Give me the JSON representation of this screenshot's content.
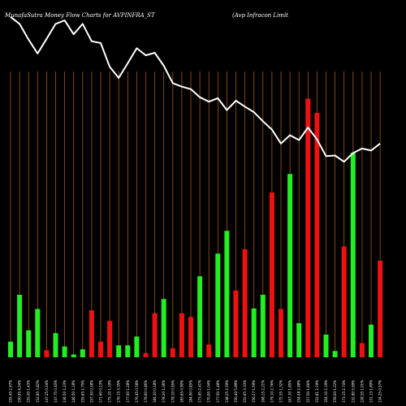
{
  "chart_data": {
    "type": "bar",
    "title": "MunafaSutra  Money Flow  Charts for AVPINFRA_ST",
    "subtitle": "(Avp Infracon  Limit",
    "colors": {
      "background": "#000000",
      "up": "#22ee22",
      "down": "#ee1111",
      "grid": "#b5651d",
      "line": "#ffffff"
    },
    "grid": true,
    "ylim": [
      0,
      1
    ],
    "categories": [
      "155.45 2.97%",
      "150.95 4.04%",
      "155.00 1.43%",
      "152.85 3.82%",
      "147.25 0.34%",
      "147.75 0.40%",
      "136.50 1.23%",
      "146.50 1.18%",
      "155.65 1.75%",
      "157.50 0.38%",
      "171.60 0.23%",
      "175.10 1.19%",
      "176.15 3.35%",
      "177.00 1.28%",
      "176.45 0.58%",
      "178.60 0.86%",
      "184.20 0.18%",
      "178.20 1.36%",
      "178.10 0.95%",
      "183.65 0.90%",
      "184.90 0.85%",
      "173.95 2.41%",
      "170.00 1.04%",
      "177.50 1.48%",
      "148.25 2.59%",
      "150.40 5.89%",
      "152.65 3.33%",
      "156.27 1.59%",
      "168.15 2.21%",
      "179.10 2.76%",
      "172.35 1.32%",
      "167.30 1.85%",
      "154.08 2.98%",
      "157.50 1.66%",
      "152.81 2.19%",
      "164.10 2.19%",
      "159.00 1.22%",
      "173.15 2.74%",
      "132.80 5.99%",
      "128.35 1.01%",
      "131.13 1.89%",
      "134.25 0.57%"
    ],
    "directions": [
      "up",
      "up",
      "up",
      "up",
      "down",
      "up",
      "up",
      "up",
      "up",
      "down",
      "down",
      "down",
      "up",
      "up",
      "up",
      "down",
      "down",
      "up",
      "down",
      "down",
      "down",
      "up",
      "down",
      "up",
      "up",
      "down",
      "down",
      "up",
      "up",
      "down",
      "down",
      "up",
      "up",
      "down",
      "down",
      "up",
      "up",
      "down",
      "up",
      "down",
      "up",
      "down"
    ],
    "values": [
      0.055,
      0.22,
      0.095,
      0.17,
      0.025,
      0.085,
      0.038,
      0.01,
      0.028,
      0.165,
      0.055,
      0.128,
      0.042,
      0.042,
      0.073,
      0.015,
      0.155,
      0.205,
      0.032,
      0.155,
      0.142,
      0.285,
      0.045,
      0.365,
      0.445,
      0.235,
      0.38,
      0.172,
      0.22,
      0.58,
      0.17,
      0.645,
      0.12,
      0.91,
      0.86,
      0.08,
      0.022,
      0.39,
      0.72,
      0.05,
      0.115,
      0.34
    ],
    "line_values": [
      0.975,
      0.955,
      0.91,
      0.87,
      0.912,
      0.955,
      0.965,
      0.925,
      0.955,
      0.905,
      0.9,
      0.832,
      0.8,
      0.842,
      0.885,
      0.865,
      0.872,
      0.835,
      0.785,
      0.775,
      0.768,
      0.745,
      0.732,
      0.742,
      0.708,
      0.735,
      0.718,
      0.702,
      0.676,
      0.652,
      0.612,
      0.636,
      0.622,
      0.658,
      0.624,
      0.576,
      0.578,
      0.56,
      0.585,
      0.598,
      0.592,
      0.612
    ]
  }
}
